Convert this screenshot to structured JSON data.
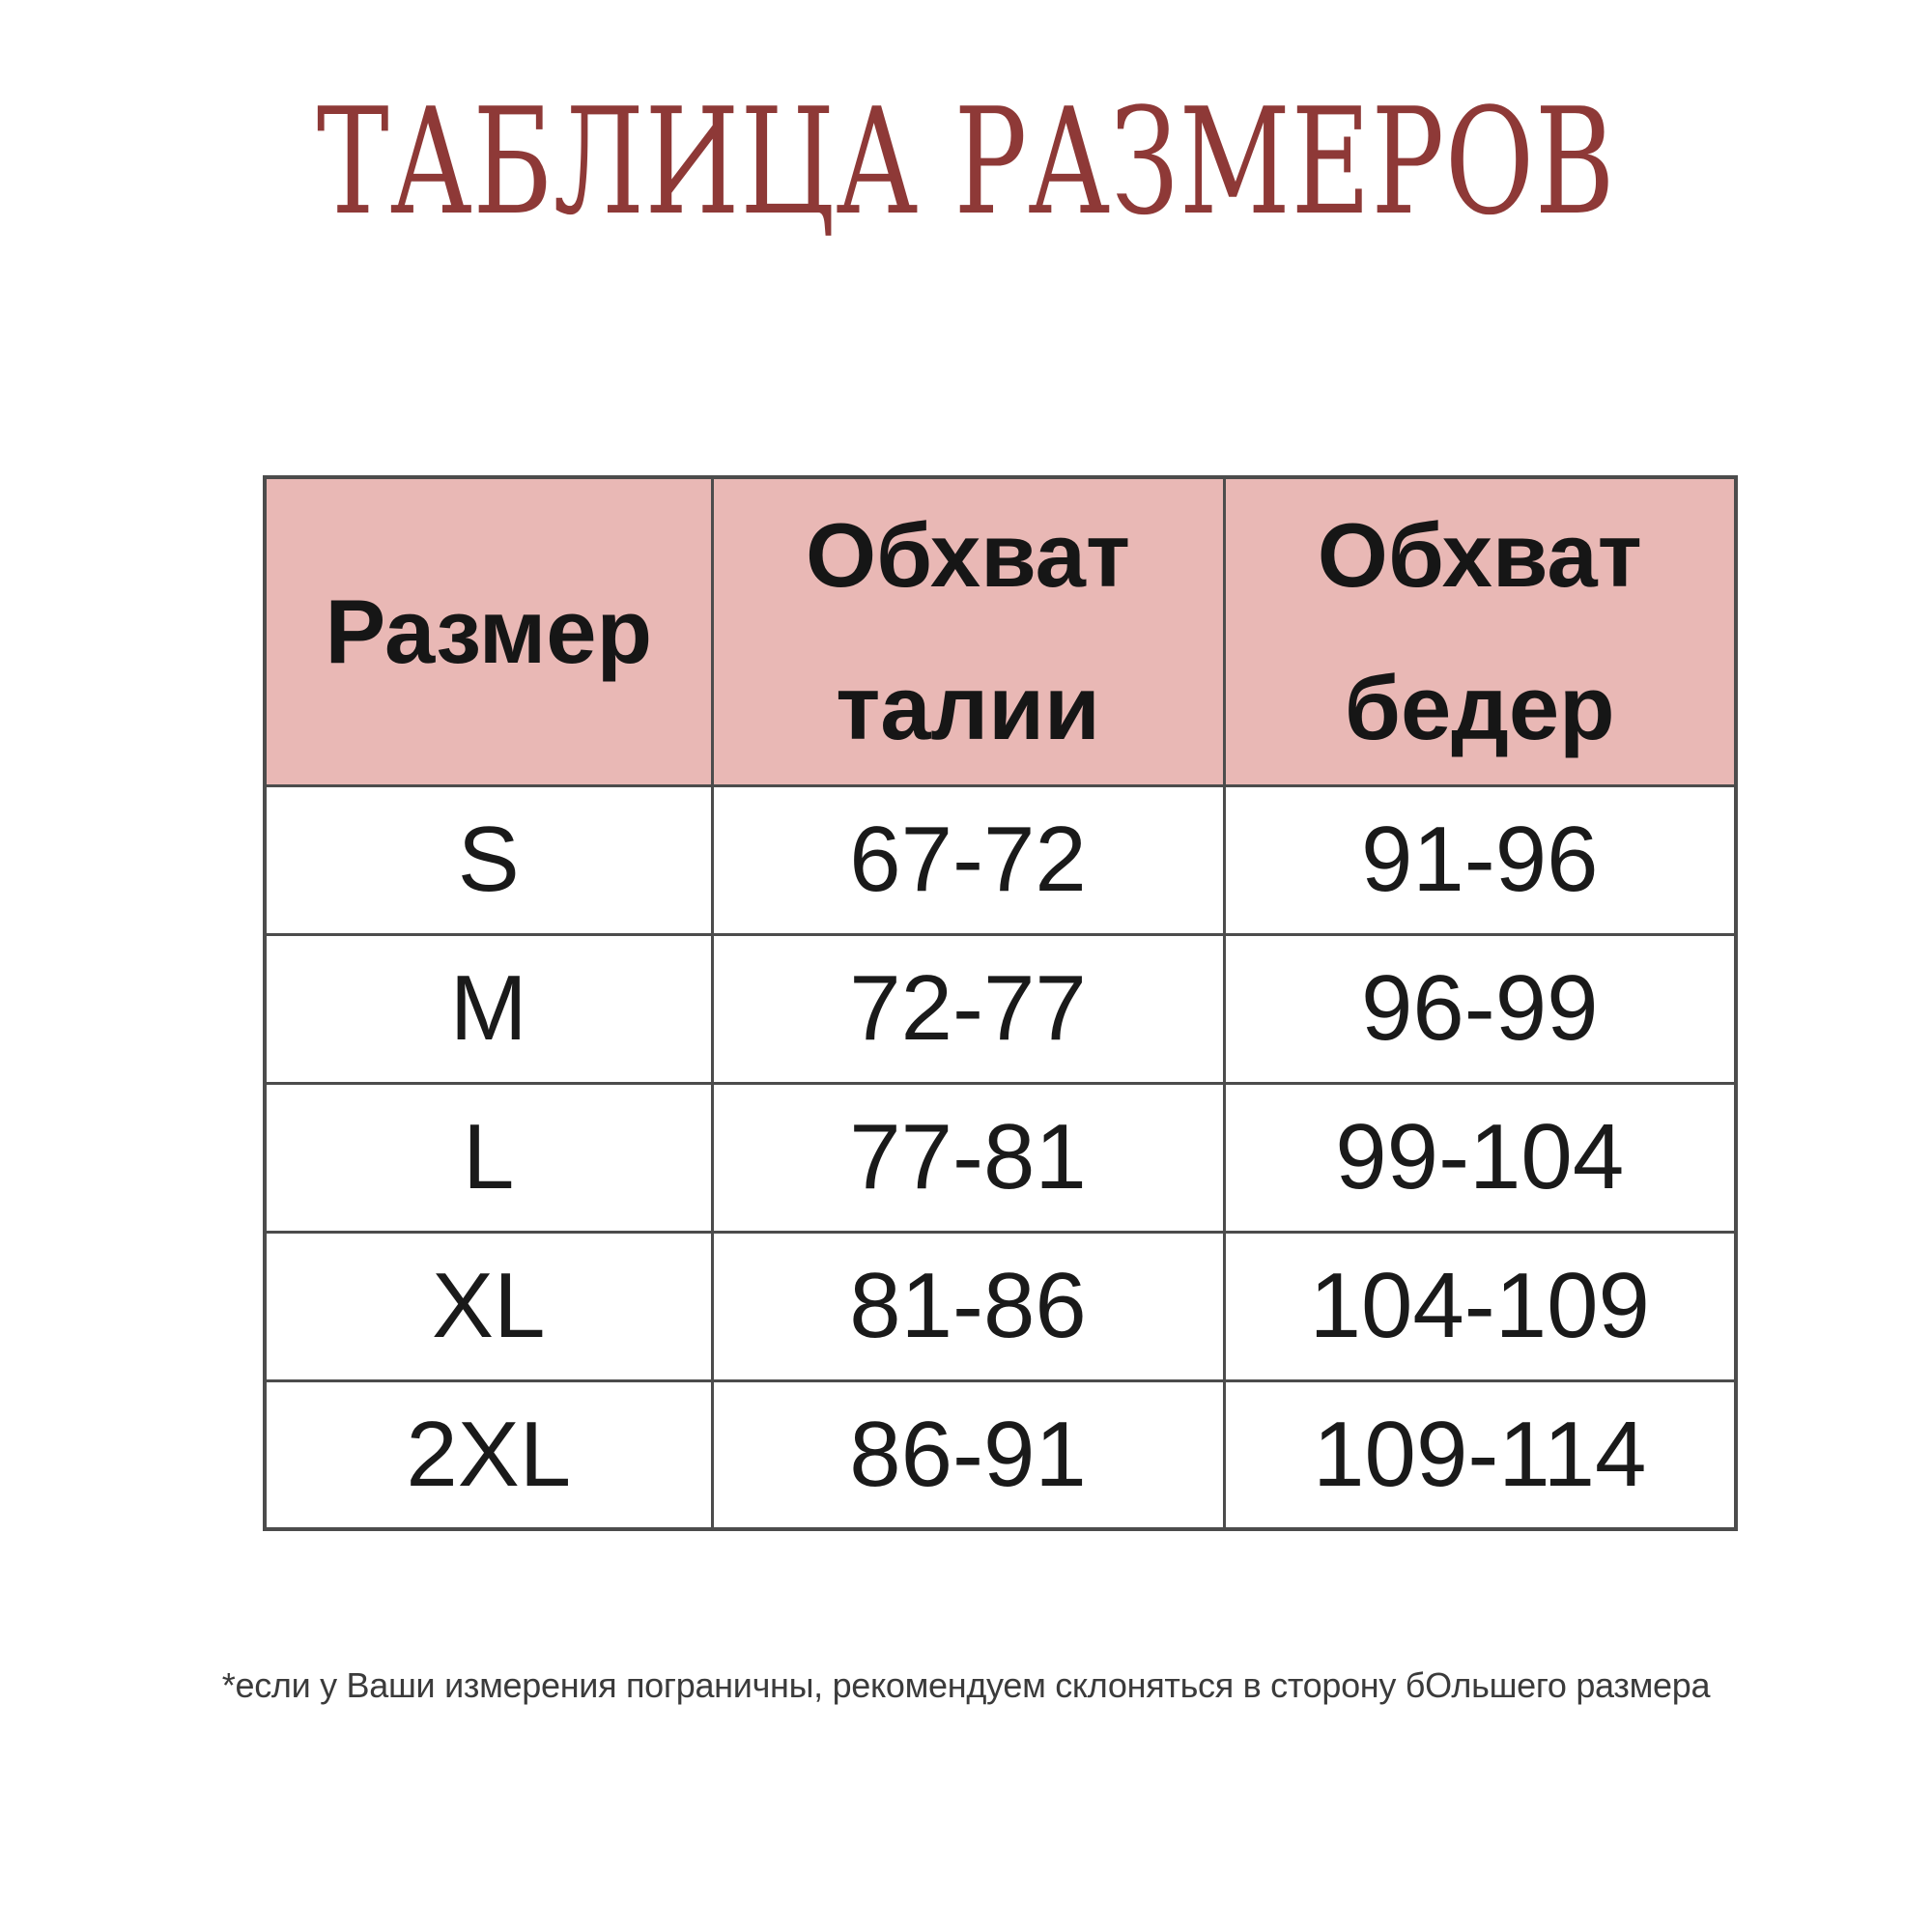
{
  "title": "ТАБЛИЦА РАЗМЕРОВ",
  "table": {
    "columns": [
      "Размер",
      "Обхват талии",
      "Обхват бедер"
    ],
    "rows": [
      {
        "size": "S",
        "waist": "67-72",
        "hips": "91-96"
      },
      {
        "size": "M",
        "waist": "72-77",
        "hips": "96-99"
      },
      {
        "size": "L",
        "waist": "77-81",
        "hips": "99-104"
      },
      {
        "size": "XL",
        "waist": "81-86",
        "hips": "104-109"
      },
      {
        "size": "2XL",
        "waist": "86-91",
        "hips": "109-114"
      }
    ]
  },
  "footnote": "*если у Ваши измерения пограничны, рекомендуем склоняться в сторону бОльшего размера",
  "colors": {
    "title_text": "#8e3937",
    "header_background": "#e9b8b5",
    "table_border": "#4c4c4c",
    "cell_text": "#1a1a1a",
    "footnote_text": "#3b3b3b",
    "page_background": "#ffffff"
  },
  "chart_data": {
    "type": "table",
    "title": "ТАБЛИЦА РАЗМЕРОВ",
    "columns": [
      "Размер",
      "Обхват талии",
      "Обхват бедер"
    ],
    "rows": [
      [
        "S",
        "67-72",
        "91-96"
      ],
      [
        "M",
        "72-77",
        "96-99"
      ],
      [
        "L",
        "77-81",
        "99-104"
      ],
      [
        "XL",
        "81-86",
        "104-109"
      ],
      [
        "2XL",
        "86-91",
        "109-114"
      ]
    ],
    "notes": "*если у Ваши измерения пограничны, рекомендуем склоняться в сторону бОльшего размера"
  }
}
